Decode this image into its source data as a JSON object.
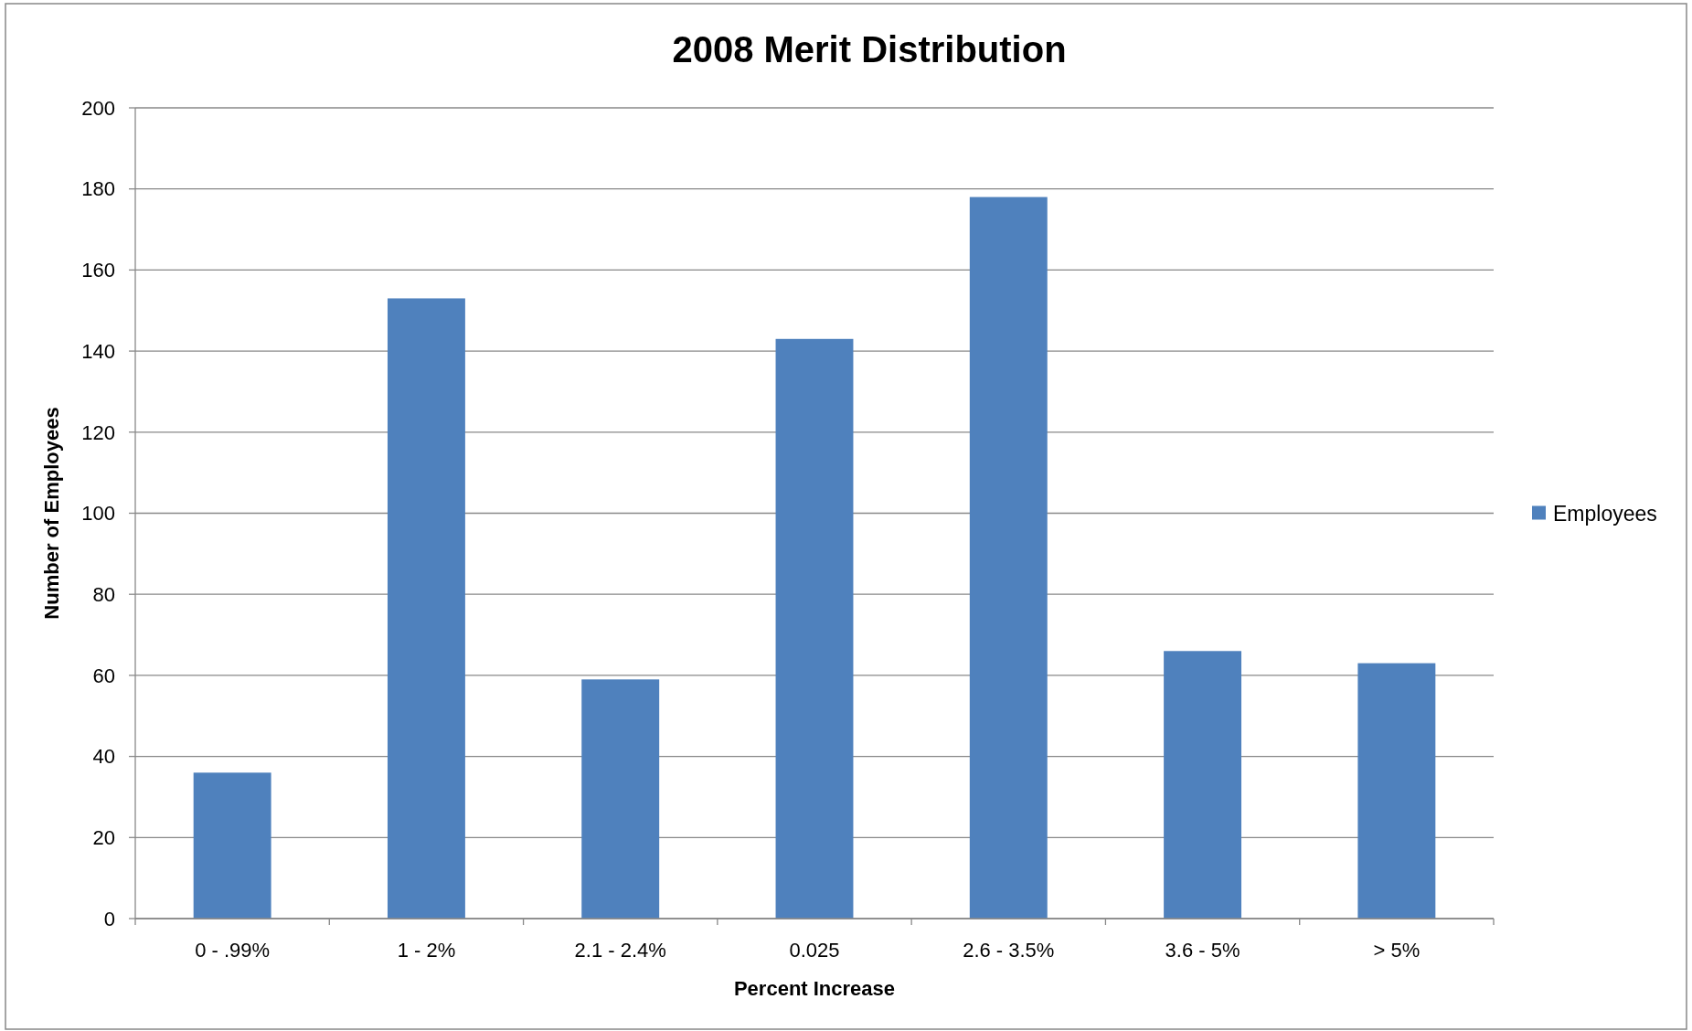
{
  "chart_data": {
    "type": "bar",
    "title": "2008 Merit Distribution",
    "xlabel": "Percent Increase",
    "ylabel": "Number of Employees",
    "categories": [
      "0 - .99%",
      "1 - 2%",
      "2.1 - 2.4%",
      "0.025",
      "2.6 - 3.5%",
      "3.6 - 5%",
      "> 5%"
    ],
    "series": [
      {
        "name": "Employees",
        "color": "#4f81bd",
        "values": [
          36,
          153,
          59,
          143,
          178,
          66,
          63
        ]
      }
    ],
    "ylim": [
      0,
      200
    ],
    "yticks": [
      0,
      20,
      40,
      60,
      80,
      100,
      120,
      140,
      160,
      180,
      200
    ],
    "grid": "y",
    "legend": "right"
  }
}
